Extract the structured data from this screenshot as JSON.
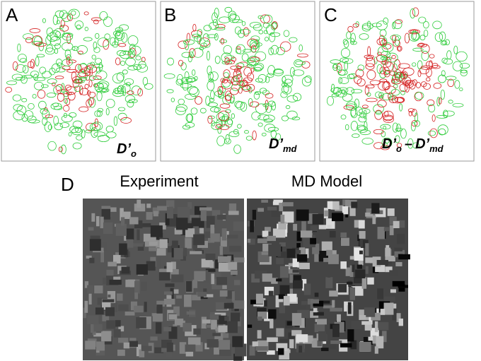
{
  "panels": [
    {
      "letter": "A",
      "label": {
        "base": "D’",
        "sub": "o"
      }
    },
    {
      "letter": "B",
      "label": {
        "base": "D’",
        "sub": "md"
      }
    },
    {
      "letter": "C",
      "label": {
        "left": {
          "base": "D’",
          "sub": "o"
        },
        "operator": "–",
        "right": {
          "base": "D’",
          "sub": "md"
        }
      }
    }
  ],
  "panel_d": {
    "letter": "D",
    "captions": [
      "Experiment",
      "MD Model"
    ]
  }
}
